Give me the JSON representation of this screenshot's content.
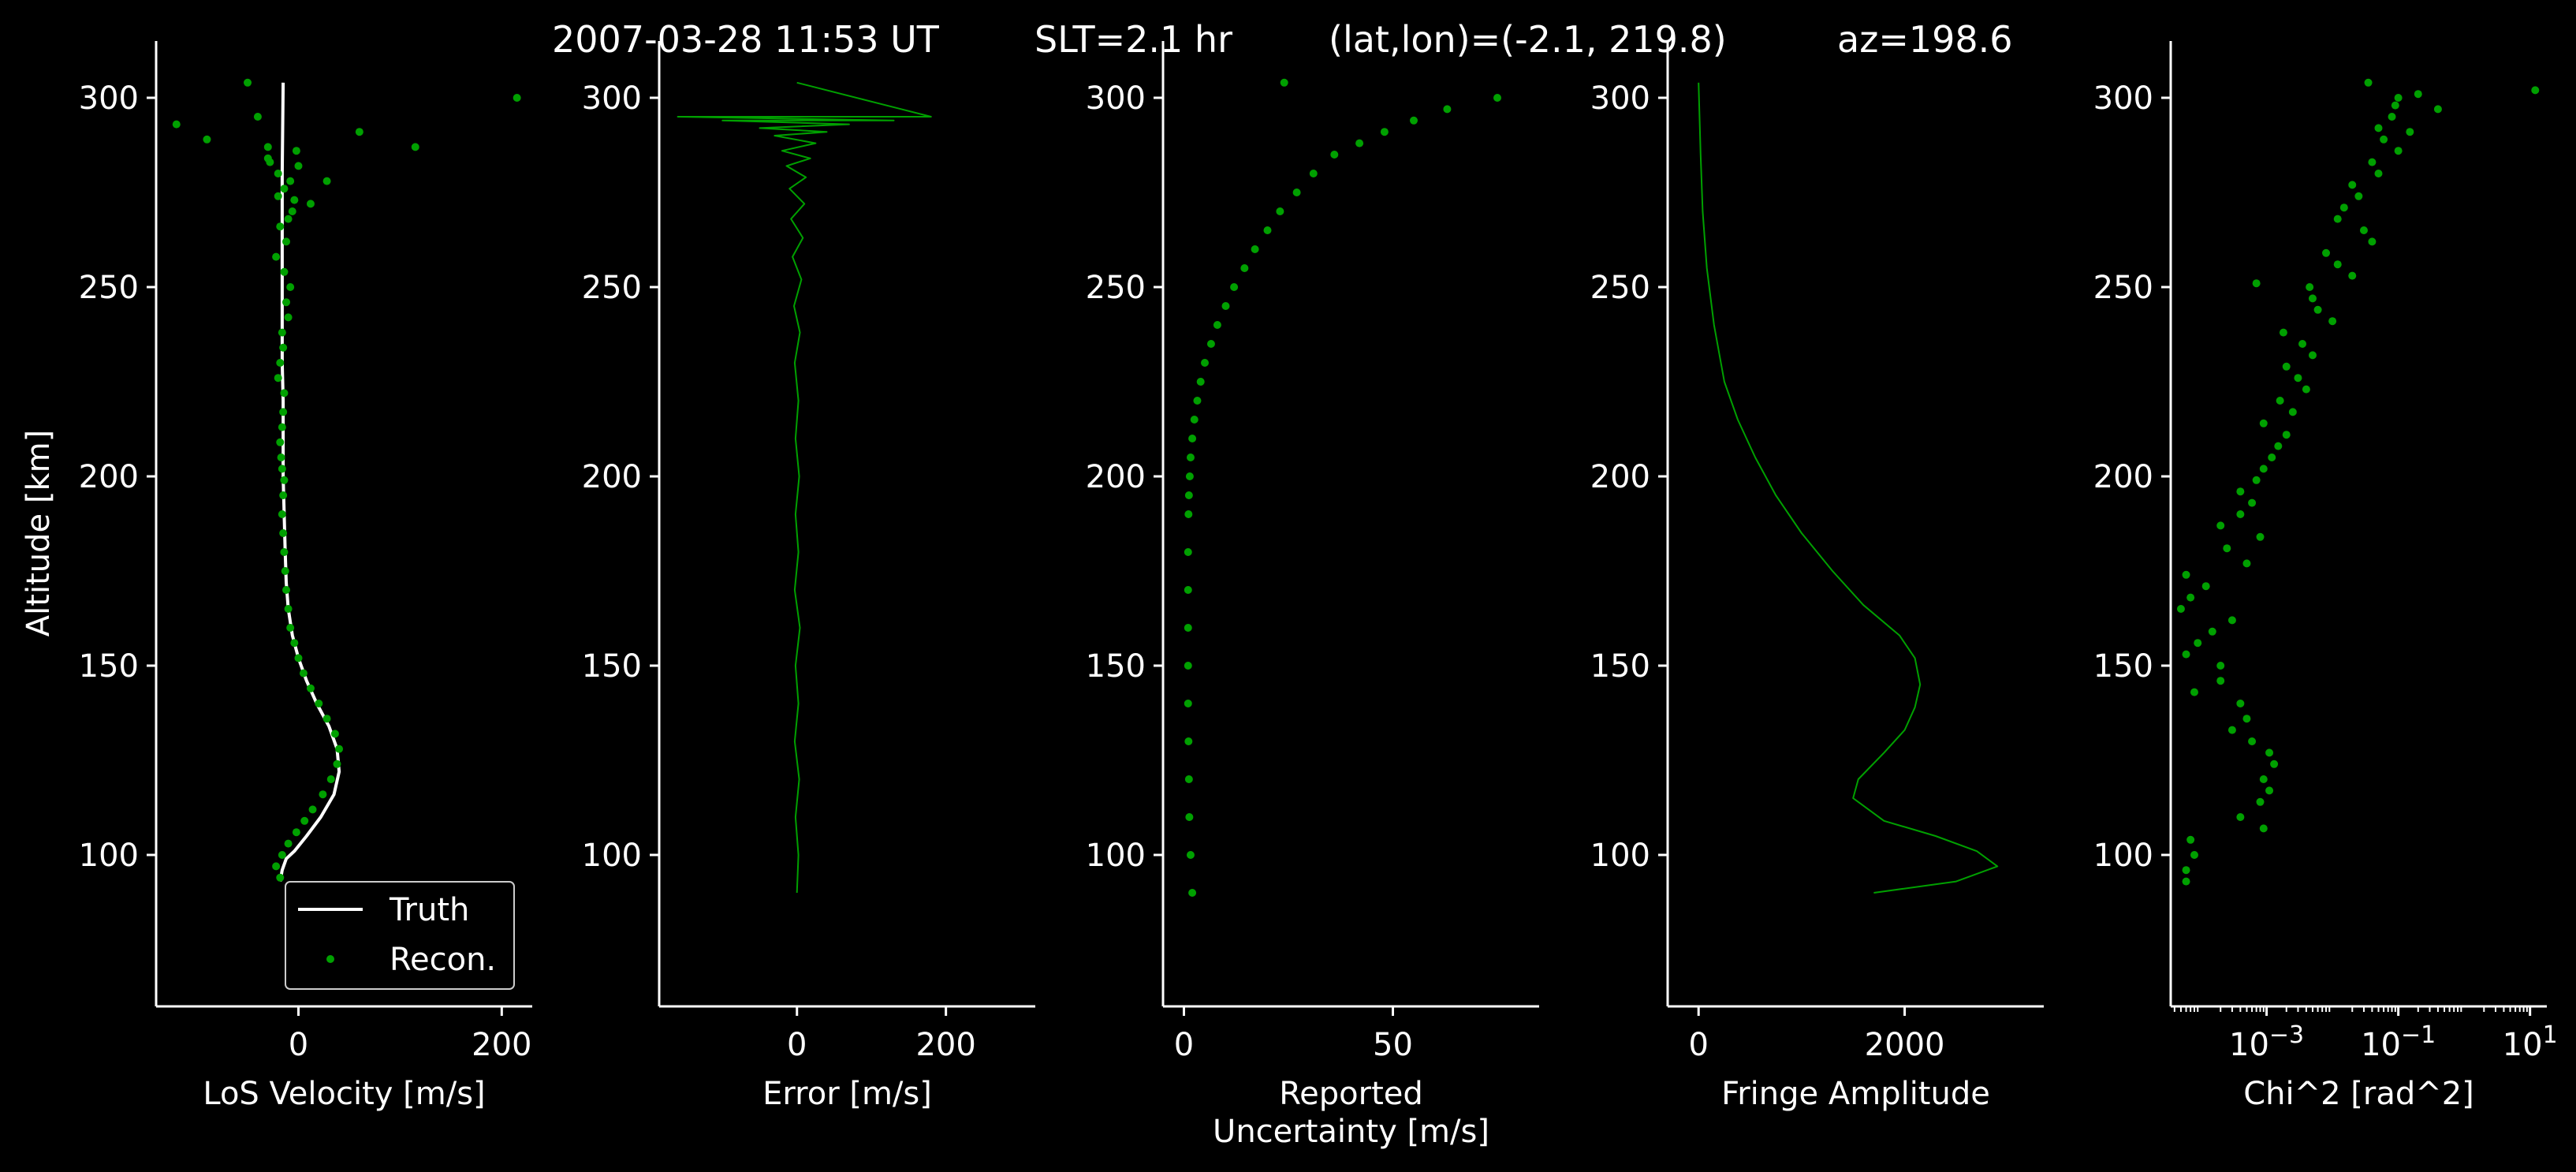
{
  "figure": {
    "title_parts": [
      "2007-03-28 11:53 UT",
      "SLT=2.1 hr",
      "(lat,lon)=(-2.1, 219.8)",
      "az=198.6"
    ]
  },
  "colors": {
    "background": "#000000",
    "foreground": "#ffffff",
    "recon": "#00a000",
    "truth": "#ffffff"
  },
  "legend": {
    "truth": "Truth",
    "recon": "Recon."
  },
  "chart_data": [
    {
      "type": "scatter",
      "xlabel": "LoS Velocity [m/s]",
      "ylabel": "Altitude [km]",
      "xlim": [
        -140,
        230
      ],
      "ylim": [
        60,
        315
      ],
      "xticks": [
        0,
        200
      ],
      "yticks": [
        100,
        150,
        200,
        250,
        300
      ],
      "legend_position": "lower right",
      "series": [
        {
          "name": "Truth",
          "kind": "line",
          "x": [
            -18,
            -16,
            -12,
            -4,
            8,
            22,
            35,
            40,
            38,
            30,
            18,
            8,
            0,
            -6,
            -10,
            -12,
            -13,
            -14,
            -15,
            -15,
            -15,
            -16,
            -16,
            -16,
            -15
          ],
          "y": [
            93,
            96,
            99,
            101,
            105,
            110,
            116,
            122,
            128,
            134,
            140,
            146,
            152,
            158,
            165,
            172,
            180,
            190,
            200,
            210,
            220,
            230,
            250,
            280,
            304
          ]
        },
        {
          "name": "Recon.",
          "kind": "points",
          "x": [
            -18,
            -22,
            -16,
            -10,
            -2,
            6,
            14,
            24,
            32,
            38,
            40,
            36,
            28,
            20,
            12,
            5,
            0,
            -4,
            -8,
            -10,
            -12,
            -13,
            -14,
            -15,
            -16,
            -15,
            -14,
            -16,
            -17,
            -18,
            -16,
            -15,
            -14,
            -20,
            -18,
            -15,
            -16,
            -10,
            -12,
            -8,
            -14,
            -22,
            -12,
            -18,
            -6,
            -20,
            -8,
            -14,
            -4,
            0,
            -20,
            -28,
            12,
            -10,
            28,
            -30,
            -2,
            -90,
            -40,
            -120,
            60,
            115,
            -50,
            215,
            -30
          ],
          "y": [
            94,
            97,
            100,
            103,
            106,
            109,
            112,
            116,
            120,
            124,
            128,
            132,
            136,
            140,
            144,
            148,
            152,
            156,
            160,
            165,
            170,
            175,
            180,
            185,
            190,
            195,
            199,
            202,
            205,
            209,
            213,
            217,
            222,
            226,
            230,
            234,
            238,
            242,
            246,
            250,
            254,
            258,
            262,
            266,
            270,
            274,
            278,
            276,
            273,
            282,
            280,
            283,
            272,
            268,
            278,
            287,
            286,
            289,
            295,
            293,
            291,
            287,
            304,
            300,
            284
          ]
        }
      ]
    },
    {
      "type": "line",
      "xlabel": "Error [m/s]",
      "xlim": [
        -185,
        320
      ],
      "ylim": [
        60,
        315
      ],
      "xticks": [
        0,
        200
      ],
      "yticks": [
        100,
        150,
        200,
        250,
        300
      ],
      "series": [
        {
          "name": "",
          "x": [
            0,
            2,
            -2,
            3,
            -3,
            2,
            -2,
            4,
            -3,
            2,
            -2,
            3,
            -2,
            2,
            -3,
            4,
            -4,
            6,
            -6,
            8,
            -8,
            10,
            -10,
            12,
            -14,
            18,
            -20,
            25,
            -30,
            40,
            -50,
            70,
            -100,
            130,
            -160,
            180,
            0
          ],
          "y": [
            90,
            100,
            110,
            120,
            130,
            140,
            150,
            160,
            170,
            180,
            190,
            200,
            210,
            220,
            230,
            238,
            245,
            252,
            258,
            263,
            268,
            272,
            276,
            279,
            282,
            284,
            286,
            288,
            290,
            291,
            292,
            293,
            294,
            294,
            295,
            295,
            304
          ]
        }
      ]
    },
    {
      "type": "scatter",
      "xlabel": "Reported Uncertainty [m/s]",
      "xlim": [
        -5,
        85
      ],
      "ylim": [
        60,
        315
      ],
      "xticks": [
        0,
        50
      ],
      "yticks": [
        100,
        150,
        200,
        250,
        300
      ],
      "series": [
        {
          "name": "",
          "x": [
            2,
            1.6,
            1.3,
            1.2,
            1.1,
            1.0,
            1.0,
            1.0,
            1.0,
            1.0,
            1.1,
            1.2,
            1.4,
            1.6,
            2.0,
            2.5,
            3.2,
            4,
            5,
            6.5,
            8,
            10,
            12,
            14.5,
            17,
            20,
            23,
            27,
            31,
            36,
            42,
            48,
            55,
            63,
            75,
            24
          ],
          "y": [
            90,
            100,
            110,
            120,
            130,
            140,
            150,
            160,
            170,
            180,
            190,
            195,
            200,
            205,
            210,
            215,
            220,
            225,
            230,
            235,
            240,
            245,
            250,
            255,
            260,
            265,
            270,
            275,
            280,
            285,
            288,
            291,
            294,
            297,
            300,
            304
          ]
        }
      ]
    },
    {
      "type": "line",
      "xlabel": "Fringe Amplitude",
      "xlim": [
        -300,
        3350
      ],
      "ylim": [
        60,
        315
      ],
      "xticks": [
        0,
        2000
      ],
      "yticks": [
        100,
        150,
        200,
        250,
        300
      ],
      "series": [
        {
          "name": "",
          "x": [
            1700,
            2500,
            2900,
            2700,
            2300,
            1800,
            1500,
            1550,
            1800,
            2000,
            2100,
            2150,
            2100,
            1950,
            1600,
            1300,
            1000,
            750,
            550,
            380,
            250,
            150,
            80,
            40,
            20,
            0
          ],
          "y": [
            90,
            93,
            97,
            101,
            105,
            109,
            115,
            120,
            127,
            133,
            139,
            145,
            152,
            158,
            166,
            175,
            185,
            195,
            205,
            215,
            225,
            240,
            255,
            270,
            285,
            304
          ]
        }
      ]
    },
    {
      "type": "scatter",
      "xlabel": "Chi^2 [rad^2]",
      "xlim": [
        3.5e-05,
        18
      ],
      "xscale": "log",
      "ylim": [
        60,
        315
      ],
      "xticks": [
        0.001,
        0.1,
        10
      ],
      "xtick_labels": [
        "10^−3",
        "10^−1",
        "10^1"
      ],
      "yticks": [
        100,
        150,
        200,
        250,
        300
      ],
      "series": [
        {
          "name": "",
          "x": [
            6e-05,
            6e-05,
            8e-05,
            7e-05,
            0.0009,
            0.0004,
            0.0008,
            0.0011,
            0.0009,
            0.0013,
            0.0011,
            0.0006,
            0.0003,
            0.0005,
            0.0004,
            8e-05,
            0.0002,
            0.0002,
            6e-05,
            9e-05,
            0.00015,
            0.0003,
            5e-05,
            7e-05,
            0.00012,
            6e-05,
            0.0005,
            0.00025,
            0.0008,
            0.0002,
            0.0004,
            0.0006,
            0.0004,
            0.0007,
            0.0009,
            0.0012,
            0.0015,
            0.002,
            0.0009,
            0.0025,
            0.0016,
            0.004,
            0.003,
            0.002,
            0.005,
            0.0035,
            0.0018,
            0.01,
            0.006,
            0.005,
            0.0045,
            0.02,
            0.0007,
            0.012,
            0.008,
            0.04,
            0.03,
            0.012,
            0.015,
            0.025,
            0.02,
            0.05,
            0.04,
            0.1,
            0.06,
            0.05,
            0.08,
            0.09,
            0.2,
            0.1,
            12,
            0.4,
            0.15,
            0.035
          ],
          "y": [
            93,
            96,
            100,
            104,
            107,
            110,
            114,
            117,
            120,
            124,
            127,
            130,
            133,
            136,
            140,
            143,
            146,
            150,
            153,
            156,
            159,
            162,
            165,
            168,
            171,
            174,
            177,
            181,
            184,
            187,
            190,
            193,
            196,
            199,
            202,
            205,
            208,
            211,
            214,
            217,
            220,
            223,
            226,
            229,
            232,
            235,
            238,
            241,
            244,
            247,
            250,
            253,
            251,
            256,
            259,
            262,
            265,
            268,
            271,
            274,
            277,
            280,
            283,
            286,
            289,
            292,
            295,
            298,
            301,
            300,
            302,
            297,
            291,
            304
          ]
        }
      ]
    }
  ]
}
